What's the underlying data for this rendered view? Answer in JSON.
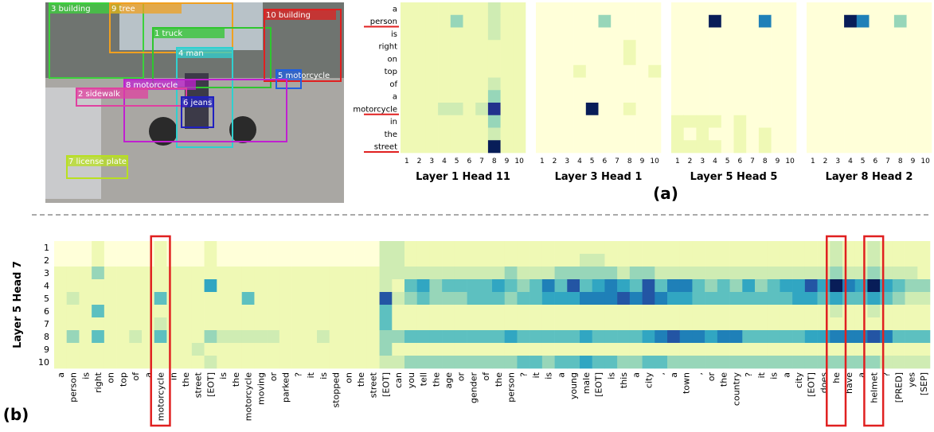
{
  "image": {
    "boxes": [
      "3 building",
      "9 tree",
      "1 truck",
      "10 building",
      "4 man",
      "5 motorcycle",
      "8 motorcycle",
      "2 sidewalk",
      "6 jeans",
      "7 license plate"
    ]
  },
  "captions": {
    "a": "(a)",
    "b": "(b)"
  },
  "chart_data": [
    {
      "type": "heatmap",
      "title": "Layer 1 Head 11",
      "rows": [
        "a",
        "person",
        "is",
        "right",
        "on",
        "top",
        "of",
        "a",
        "motorcycle",
        "in",
        "the",
        "street"
      ],
      "columns": [
        1,
        2,
        3,
        4,
        5,
        6,
        7,
        8,
        9,
        10
      ],
      "values": [
        [
          1,
          1,
          1,
          1,
          1,
          1,
          1,
          2,
          1,
          1
        ],
        [
          1,
          1,
          1,
          1,
          3,
          1,
          1,
          2,
          1,
          1
        ],
        [
          1,
          1,
          1,
          1,
          1,
          1,
          1,
          2,
          1,
          1
        ],
        [
          1,
          1,
          1,
          1,
          1,
          1,
          1,
          1,
          1,
          1
        ],
        [
          1,
          1,
          1,
          1,
          1,
          1,
          1,
          1,
          1,
          1
        ],
        [
          1,
          1,
          1,
          1,
          1,
          1,
          1,
          1,
          1,
          1
        ],
        [
          1,
          1,
          1,
          1,
          1,
          1,
          1,
          2,
          1,
          1
        ],
        [
          1,
          1,
          1,
          1,
          1,
          1,
          1,
          3,
          1,
          1
        ],
        [
          1,
          1,
          1,
          2,
          2,
          1,
          2,
          8,
          1,
          1
        ],
        [
          1,
          1,
          1,
          1,
          1,
          1,
          1,
          3,
          1,
          1
        ],
        [
          1,
          1,
          1,
          1,
          1,
          1,
          1,
          2,
          1,
          1
        ],
        [
          1,
          1,
          1,
          1,
          1,
          1,
          1,
          9,
          1,
          1
        ]
      ]
    },
    {
      "type": "heatmap",
      "title": "Layer 3 Head 1",
      "rows": [
        "a",
        "person",
        "is",
        "right",
        "on",
        "top",
        "of",
        "a",
        "motorcycle",
        "in",
        "the",
        "street"
      ],
      "columns": [
        1,
        2,
        3,
        4,
        5,
        6,
        7,
        8,
        9,
        10
      ],
      "values": [
        [
          0,
          0,
          0,
          0,
          0,
          0,
          0,
          0,
          0,
          0
        ],
        [
          0,
          0,
          0,
          0,
          0,
          3,
          0,
          0,
          0,
          0
        ],
        [
          0,
          0,
          0,
          0,
          0,
          0,
          0,
          0,
          0,
          0
        ],
        [
          0,
          0,
          0,
          0,
          0,
          0,
          0,
          1,
          0,
          0
        ],
        [
          0,
          0,
          0,
          0,
          0,
          0,
          0,
          1,
          0,
          0
        ],
        [
          0,
          0,
          0,
          1,
          0,
          0,
          0,
          0,
          0,
          1
        ],
        [
          0,
          0,
          0,
          0,
          0,
          0,
          0,
          0,
          0,
          0
        ],
        [
          0,
          0,
          0,
          0,
          0,
          0,
          0,
          0,
          0,
          0
        ],
        [
          0,
          0,
          0,
          0,
          9,
          0,
          0,
          1,
          0,
          0
        ],
        [
          0,
          0,
          0,
          0,
          0,
          0,
          0,
          0,
          0,
          0
        ],
        [
          0,
          0,
          0,
          0,
          0,
          0,
          0,
          0,
          0,
          0
        ],
        [
          0,
          0,
          0,
          0,
          0,
          0,
          0,
          0,
          0,
          0
        ]
      ]
    },
    {
      "type": "heatmap",
      "title": "Layer 5 Head 5",
      "rows": [
        "a",
        "person",
        "is",
        "right",
        "on",
        "top",
        "of",
        "a",
        "motorcycle",
        "in",
        "the",
        "street"
      ],
      "columns": [
        1,
        2,
        3,
        4,
        5,
        6,
        7,
        8,
        9,
        10
      ],
      "values": [
        [
          0,
          0,
          0,
          0,
          0,
          0,
          0,
          0,
          0,
          0
        ],
        [
          0,
          0,
          0,
          9,
          0,
          0,
          0,
          6,
          0,
          0
        ],
        [
          0,
          0,
          0,
          0,
          0,
          0,
          0,
          0,
          0,
          0
        ],
        [
          0,
          0,
          0,
          0,
          0,
          0,
          0,
          0,
          0,
          0
        ],
        [
          0,
          0,
          0,
          0,
          0,
          0,
          0,
          0,
          0,
          0
        ],
        [
          0,
          0,
          0,
          0,
          0,
          0,
          0,
          0,
          0,
          0
        ],
        [
          0,
          0,
          0,
          0,
          0,
          0,
          0,
          0,
          0,
          0
        ],
        [
          0,
          0,
          0,
          0,
          0,
          0,
          0,
          0,
          0,
          0
        ],
        [
          0,
          0,
          0,
          0,
          0,
          0,
          0,
          0,
          0,
          0
        ],
        [
          1,
          1,
          1,
          1,
          0,
          1,
          0,
          0,
          0,
          0
        ],
        [
          1,
          0,
          1,
          0,
          0,
          1,
          0,
          1,
          0,
          0
        ],
        [
          1,
          1,
          1,
          1,
          0,
          1,
          0,
          1,
          0,
          0
        ]
      ]
    },
    {
      "type": "heatmap",
      "title": "Layer 8 Head 2",
      "rows": [
        "a",
        "person",
        "is",
        "right",
        "on",
        "top",
        "of",
        "a",
        "motorcycle",
        "in",
        "the",
        "street"
      ],
      "columns": [
        1,
        2,
        3,
        4,
        5,
        6,
        7,
        8,
        9,
        10
      ],
      "values": [
        [
          0,
          0,
          0,
          0,
          0,
          0,
          0,
          0,
          0,
          0
        ],
        [
          0,
          0,
          0,
          9,
          6,
          0,
          0,
          3,
          0,
          0
        ],
        [
          0,
          0,
          0,
          0,
          0,
          0,
          0,
          0,
          0,
          0
        ],
        [
          0,
          0,
          0,
          0,
          0,
          0,
          0,
          0,
          0,
          0
        ],
        [
          0,
          0,
          0,
          0,
          0,
          0,
          0,
          0,
          0,
          0
        ],
        [
          0,
          0,
          0,
          0,
          0,
          0,
          0,
          0,
          0,
          0
        ],
        [
          0,
          0,
          0,
          0,
          0,
          0,
          0,
          0,
          0,
          0
        ],
        [
          0,
          0,
          0,
          0,
          0,
          0,
          0,
          0,
          0,
          0
        ],
        [
          0,
          0,
          0,
          0,
          0,
          0,
          0,
          0,
          0,
          0
        ],
        [
          0,
          0,
          0,
          0,
          0,
          0,
          0,
          0,
          0,
          0
        ],
        [
          0,
          0,
          0,
          0,
          0,
          0,
          0,
          0,
          0,
          0
        ],
        [
          0,
          0,
          0,
          0,
          0,
          0,
          0,
          0,
          0,
          0
        ]
      ]
    },
    {
      "type": "heatmap",
      "y_label": "Layer 5 Head 7",
      "rows": [
        1,
        2,
        3,
        4,
        5,
        6,
        7,
        8,
        9,
        10
      ],
      "columns": [
        "a",
        "person",
        "is",
        "right",
        "on",
        "top",
        "of",
        "a",
        "motorcycle",
        "in",
        "the",
        "street",
        "[EOT]",
        "is",
        "the",
        "motorcycle",
        "moving",
        "or",
        "parked",
        "?",
        "it",
        "is",
        "stopped",
        "on",
        "the",
        "street",
        "[EOT]",
        "can",
        "you",
        "tell",
        "the",
        "age",
        "or",
        "gender",
        "of",
        "the",
        "person",
        "?",
        "it",
        "is",
        "a",
        "young",
        "male",
        "[EOT]",
        "is",
        "this",
        "a",
        "city",
        ",",
        "a",
        "town",
        ",",
        "or",
        "the",
        "country",
        "?",
        "it",
        "is",
        "a",
        "city",
        "[EOT]",
        "does",
        "he",
        "have",
        "a",
        "helmet",
        "?",
        "[PRED]",
        "yes",
        "[SEP]"
      ],
      "values": [
        [
          0,
          0,
          0,
          1,
          0,
          0,
          0,
          0,
          1,
          0,
          0,
          0,
          1,
          0,
          0,
          0,
          0,
          0,
          0,
          0,
          0,
          0,
          0,
          0,
          0,
          0,
          2,
          2,
          1,
          1,
          1,
          1,
          1,
          1,
          1,
          1,
          1,
          1,
          1,
          1,
          1,
          1,
          1,
          1,
          1,
          1,
          1,
          1,
          1,
          1,
          1,
          1,
          1,
          1,
          1,
          1,
          1,
          1,
          1,
          1,
          1,
          1,
          2,
          1,
          1,
          2,
          1,
          1,
          1,
          1
        ],
        [
          0,
          0,
          0,
          1,
          0,
          0,
          0,
          0,
          1,
          0,
          0,
          0,
          1,
          0,
          0,
          0,
          0,
          0,
          0,
          0,
          0,
          0,
          0,
          0,
          0,
          0,
          2,
          2,
          1,
          1,
          1,
          1,
          1,
          1,
          1,
          1,
          1,
          1,
          1,
          1,
          1,
          1,
          2,
          2,
          1,
          1,
          1,
          1,
          1,
          1,
          1,
          1,
          1,
          1,
          1,
          1,
          1,
          1,
          1,
          1,
          1,
          1,
          2,
          1,
          1,
          2,
          1,
          1,
          1,
          1
        ],
        [
          1,
          1,
          1,
          3,
          1,
          1,
          1,
          1,
          1,
          1,
          1,
          1,
          1,
          1,
          1,
          1,
          1,
          1,
          1,
          1,
          1,
          1,
          1,
          1,
          1,
          1,
          2,
          2,
          2,
          2,
          2,
          2,
          2,
          2,
          2,
          2,
          3,
          2,
          2,
          2,
          3,
          3,
          3,
          3,
          3,
          2,
          3,
          3,
          2,
          2,
          2,
          2,
          2,
          2,
          2,
          2,
          2,
          2,
          2,
          2,
          2,
          2,
          3,
          2,
          2,
          3,
          2,
          2,
          2,
          1
        ],
        [
          1,
          1,
          1,
          1,
          1,
          1,
          1,
          1,
          1,
          1,
          1,
          1,
          5,
          1,
          1,
          1,
          1,
          1,
          1,
          1,
          1,
          1,
          1,
          1,
          1,
          1,
          2,
          1,
          4,
          5,
          3,
          4,
          4,
          4,
          4,
          5,
          4,
          3,
          4,
          6,
          4,
          7,
          4,
          5,
          6,
          5,
          4,
          7,
          4,
          6,
          6,
          4,
          3,
          4,
          3,
          5,
          3,
          4,
          5,
          5,
          7,
          5,
          9,
          6,
          5,
          9,
          5,
          4,
          3,
          3
        ],
        [
          1,
          2,
          1,
          1,
          1,
          1,
          1,
          1,
          4,
          1,
          1,
          1,
          1,
          1,
          1,
          4,
          1,
          1,
          1,
          1,
          1,
          1,
          1,
          1,
          1,
          1,
          7,
          2,
          3,
          4,
          3,
          3,
          3,
          4,
          4,
          4,
          3,
          4,
          4,
          5,
          5,
          5,
          6,
          6,
          6,
          7,
          6,
          7,
          6,
          5,
          5,
          4,
          4,
          4,
          4,
          4,
          4,
          4,
          4,
          5,
          5,
          4,
          5,
          4,
          4,
          5,
          4,
          3,
          2,
          2
        ],
        [
          1,
          1,
          1,
          4,
          1,
          1,
          1,
          1,
          1,
          1,
          1,
          1,
          1,
          1,
          1,
          1,
          1,
          1,
          1,
          1,
          1,
          1,
          1,
          1,
          1,
          1,
          4,
          1,
          1,
          1,
          1,
          1,
          1,
          1,
          1,
          1,
          1,
          1,
          1,
          1,
          1,
          1,
          1,
          1,
          1,
          1,
          1,
          1,
          1,
          1,
          1,
          1,
          1,
          1,
          1,
          1,
          1,
          1,
          1,
          1,
          1,
          1,
          2,
          1,
          1,
          2,
          1,
          1,
          1,
          1
        ],
        [
          1,
          1,
          1,
          1,
          1,
          1,
          1,
          1,
          2,
          1,
          1,
          1,
          1,
          1,
          1,
          1,
          1,
          1,
          1,
          1,
          1,
          1,
          1,
          1,
          1,
          1,
          4,
          1,
          1,
          1,
          1,
          1,
          1,
          1,
          1,
          1,
          1,
          1,
          1,
          1,
          1,
          1,
          1,
          1,
          1,
          1,
          1,
          1,
          1,
          1,
          1,
          1,
          1,
          1,
          1,
          1,
          1,
          1,
          1,
          1,
          1,
          1,
          1,
          1,
          1,
          1,
          1,
          1,
          1,
          1
        ],
        [
          1,
          3,
          1,
          4,
          1,
          1,
          2,
          1,
          4,
          1,
          1,
          1,
          3,
          2,
          2,
          2,
          2,
          2,
          1,
          1,
          1,
          2,
          1,
          1,
          1,
          1,
          3,
          3,
          4,
          4,
          4,
          4,
          4,
          4,
          4,
          4,
          5,
          4,
          4,
          4,
          4,
          4,
          5,
          4,
          4,
          4,
          4,
          5,
          6,
          7,
          6,
          6,
          5,
          6,
          6,
          4,
          4,
          4,
          4,
          4,
          5,
          5,
          6,
          6,
          6,
          7,
          6,
          4,
          4,
          4
        ],
        [
          1,
          1,
          1,
          1,
          1,
          1,
          1,
          1,
          1,
          1,
          1,
          2,
          1,
          1,
          1,
          1,
          1,
          1,
          1,
          1,
          1,
          1,
          1,
          1,
          1,
          1,
          3,
          1,
          1,
          1,
          1,
          1,
          1,
          1,
          1,
          1,
          1,
          1,
          1,
          1,
          1,
          1,
          1,
          1,
          1,
          1,
          1,
          1,
          1,
          1,
          1,
          1,
          1,
          1,
          1,
          1,
          1,
          1,
          1,
          1,
          1,
          1,
          1,
          1,
          1,
          1,
          1,
          1,
          1,
          1
        ],
        [
          1,
          1,
          1,
          1,
          1,
          1,
          1,
          1,
          1,
          1,
          1,
          1,
          2,
          1,
          1,
          1,
          1,
          1,
          1,
          1,
          1,
          1,
          1,
          1,
          1,
          1,
          2,
          2,
          3,
          3,
          3,
          3,
          3,
          3,
          3,
          3,
          3,
          4,
          4,
          3,
          4,
          4,
          5,
          4,
          4,
          3,
          3,
          4,
          4,
          3,
          3,
          3,
          3,
          3,
          3,
          3,
          3,
          3,
          3,
          3,
          3,
          3,
          3,
          3,
          3,
          3,
          2,
          2,
          2,
          2
        ]
      ]
    }
  ]
}
